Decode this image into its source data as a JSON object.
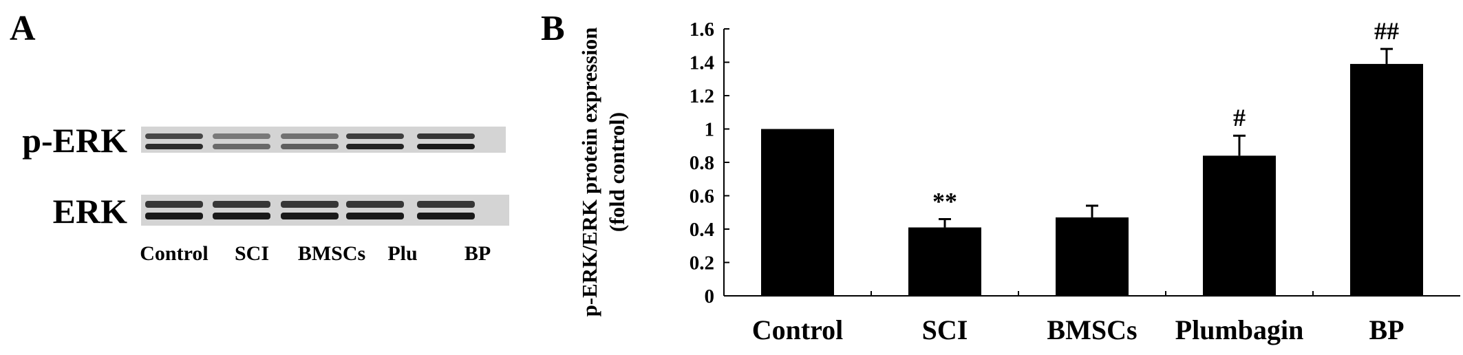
{
  "panel_a": {
    "letter": "A",
    "rows": [
      "p-ERK",
      "ERK"
    ],
    "lanes": [
      "Control",
      "SCI",
      "BMSCs",
      "Plu",
      "BP"
    ],
    "band_intensity": {
      "p-ERK": [
        0.85,
        0.55,
        0.6,
        0.9,
        0.95
      ],
      "ERK": [
        0.95,
        0.95,
        0.95,
        0.95,
        0.95
      ]
    }
  },
  "chart_data": {
    "panel_letter": "B",
    "type": "bar",
    "categories": [
      "Control",
      "SCI",
      "BMSCs",
      "Plumbagin",
      "BP"
    ],
    "values": [
      1.0,
      0.41,
      0.47,
      0.84,
      1.39
    ],
    "errors": [
      0,
      0.05,
      0.07,
      0.12,
      0.09
    ],
    "annotations": [
      "",
      "**",
      "",
      "#",
      "##"
    ],
    "ylabel_line1": "p-ERK/ERK protein expression",
    "ylabel_line2": "(fold control)",
    "ylim": [
      0,
      1.6
    ],
    "yticks": [
      0,
      0.2,
      0.4,
      0.6,
      0.8,
      1,
      1.2,
      1.4,
      1.6
    ],
    "ytick_labels": [
      "0",
      "0.2",
      "0.4",
      "0.6",
      "0.8",
      "1",
      "1.2",
      "1.4",
      "1.6"
    ],
    "grid": false,
    "bar_color": "#000000"
  }
}
